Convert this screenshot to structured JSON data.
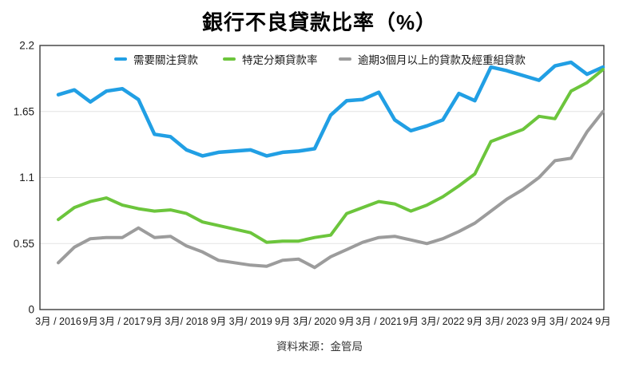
{
  "title": "銀行不良貸款比率（%）",
  "source_note": "資料來源：金管局",
  "colors": {
    "series_blue": "#219FE4",
    "series_green": "#6CC53C",
    "series_gray": "#9C9C9C",
    "gridline": "#E3E3E3",
    "plot_border": "#3C3C3C",
    "axis_text": "#1A1A1A"
  },
  "chart_data": {
    "type": "line",
    "title": "銀行不良貸款比率（%）",
    "x_frequency": "quarterly",
    "x_tick_labels": [
      "3月 / 2016",
      "9月",
      "3月 / 2017",
      "9月",
      "3月/ 2018",
      "9月",
      "3月/ 2019",
      "9月",
      "3月/ 2020",
      "9月",
      "3月 / 2021",
      "9月",
      "3月/ 2022",
      "9月",
      "3月/ 2023",
      "9月",
      "3月/ 2024",
      "9月"
    ],
    "ylim": [
      0,
      2.2
    ],
    "y_ticks": [
      {
        "value": 0,
        "label": "0"
      },
      {
        "value": 0.55,
        "label": "0.55"
      },
      {
        "value": 1.1,
        "label": "1.1"
      },
      {
        "value": 1.65,
        "label": "1.65"
      },
      {
        "value": 2.2,
        "label": "2.2"
      }
    ],
    "grid": "horizontal",
    "legend_position": "top-inside",
    "series": [
      {
        "name": "需要關注貸款",
        "color": "#219FE4",
        "values": [
          1.79,
          1.83,
          1.73,
          1.82,
          1.84,
          1.75,
          1.46,
          1.44,
          1.33,
          1.28,
          1.31,
          1.32,
          1.33,
          1.28,
          1.31,
          1.32,
          1.34,
          1.62,
          1.74,
          1.75,
          1.81,
          1.58,
          1.49,
          1.53,
          1.58,
          1.8,
          1.74,
          2.02,
          1.99,
          1.95,
          1.91,
          2.03,
          2.06,
          1.96,
          2.02
        ]
      },
      {
        "name": "特定分類貸款率",
        "color": "#6CC53C",
        "values": [
          0.75,
          0.85,
          0.9,
          0.93,
          0.87,
          0.84,
          0.82,
          0.83,
          0.8,
          0.73,
          0.7,
          0.67,
          0.64,
          0.56,
          0.57,
          0.57,
          0.6,
          0.62,
          0.8,
          0.85,
          0.9,
          0.88,
          0.82,
          0.87,
          0.94,
          1.03,
          1.13,
          1.4,
          1.45,
          1.5,
          1.61,
          1.59,
          1.82,
          1.89,
          2.0
        ]
      },
      {
        "name": "逾期3個月以上的貸款及經重組貸款",
        "color": "#9C9C9C",
        "values": [
          0.39,
          0.52,
          0.59,
          0.6,
          0.6,
          0.68,
          0.6,
          0.61,
          0.53,
          0.48,
          0.41,
          0.39,
          0.37,
          0.36,
          0.41,
          0.42,
          0.35,
          0.44,
          0.5,
          0.56,
          0.6,
          0.61,
          0.58,
          0.55,
          0.59,
          0.65,
          0.72,
          0.82,
          0.92,
          1.0,
          1.1,
          1.24,
          1.26,
          1.48,
          1.65
        ]
      }
    ]
  }
}
